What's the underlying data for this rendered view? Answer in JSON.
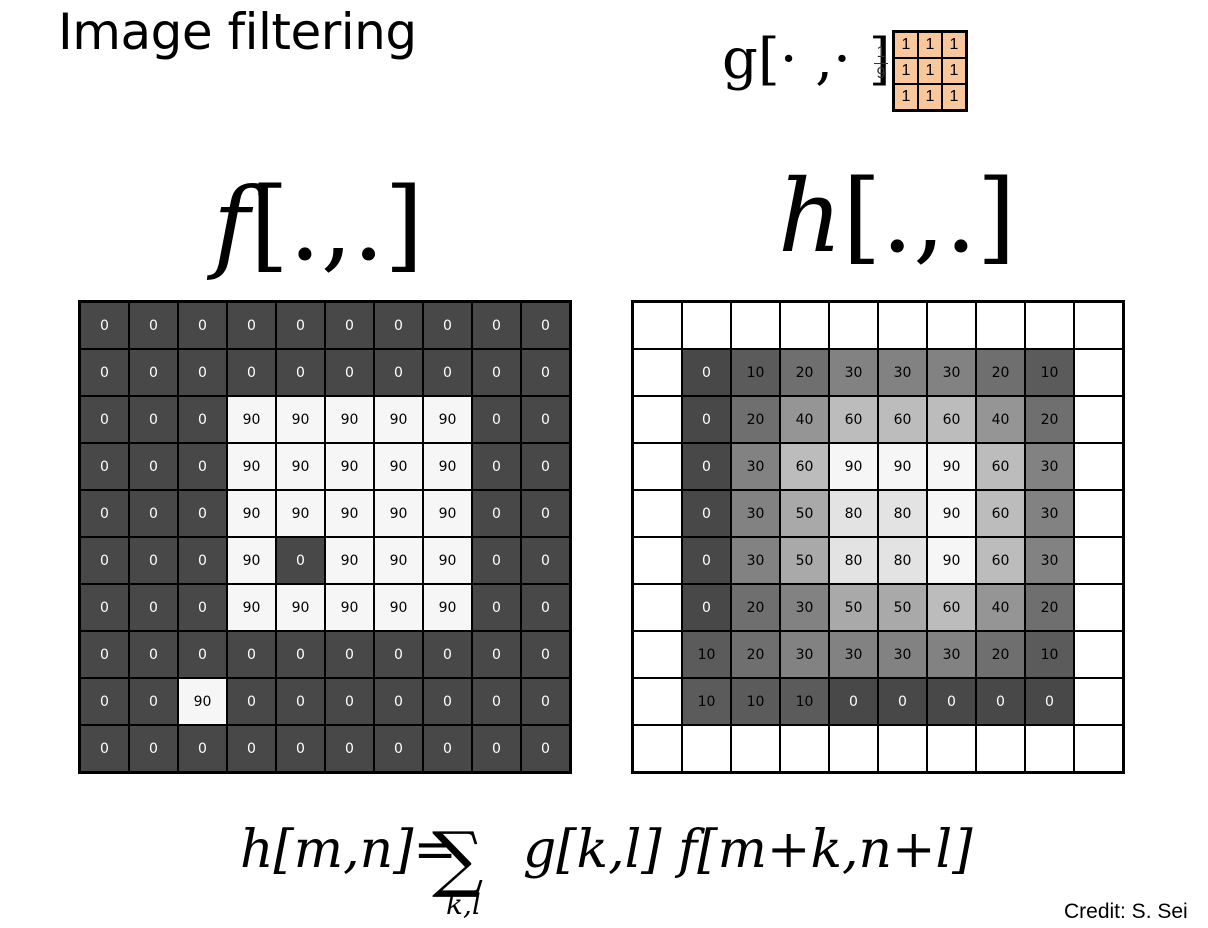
{
  "title": "Image filtering",
  "kernel": {
    "label": "g[· ,· ]",
    "scale_num": "1",
    "scale_den": "9",
    "color": "#f8c79b",
    "cells": [
      [
        "1",
        "1",
        "1"
      ],
      [
        "1",
        "1",
        "1"
      ],
      [
        "1",
        "1",
        "1"
      ]
    ]
  },
  "f_label": {
    "name": "f",
    "args": "[.,.]"
  },
  "h_label": {
    "name": "h",
    "args": "[.,.]"
  },
  "f_grid": [
    [
      "0",
      "0",
      "0",
      "0",
      "0",
      "0",
      "0",
      "0",
      "0",
      "0"
    ],
    [
      "0",
      "0",
      "0",
      "0",
      "0",
      "0",
      "0",
      "0",
      "0",
      "0"
    ],
    [
      "0",
      "0",
      "0",
      "90",
      "90",
      "90",
      "90",
      "90",
      "0",
      "0"
    ],
    [
      "0",
      "0",
      "0",
      "90",
      "90",
      "90",
      "90",
      "90",
      "0",
      "0"
    ],
    [
      "0",
      "0",
      "0",
      "90",
      "90",
      "90",
      "90",
      "90",
      "0",
      "0"
    ],
    [
      "0",
      "0",
      "0",
      "90",
      "0",
      "90",
      "90",
      "90",
      "0",
      "0"
    ],
    [
      "0",
      "0",
      "0",
      "90",
      "90",
      "90",
      "90",
      "90",
      "0",
      "0"
    ],
    [
      "0",
      "0",
      "0",
      "0",
      "0",
      "0",
      "0",
      "0",
      "0",
      "0"
    ],
    [
      "0",
      "0",
      "90",
      "0",
      "0",
      "0",
      "0",
      "0",
      "0",
      "0"
    ],
    [
      "0",
      "0",
      "0",
      "0",
      "0",
      "0",
      "0",
      "0",
      "0",
      "0"
    ]
  ],
  "h_grid": [
    [
      "",
      "",
      "",
      "",
      "",
      "",
      "",
      "",
      "",
      ""
    ],
    [
      "",
      "0",
      "10",
      "20",
      "30",
      "30",
      "30",
      "20",
      "10",
      ""
    ],
    [
      "",
      "0",
      "20",
      "40",
      "60",
      "60",
      "60",
      "40",
      "20",
      ""
    ],
    [
      "",
      "0",
      "30",
      "60",
      "90",
      "90",
      "90",
      "60",
      "30",
      ""
    ],
    [
      "",
      "0",
      "30",
      "50",
      "80",
      "80",
      "90",
      "60",
      "30",
      ""
    ],
    [
      "",
      "0",
      "30",
      "50",
      "80",
      "80",
      "90",
      "60",
      "30",
      ""
    ],
    [
      "",
      "0",
      "20",
      "30",
      "50",
      "50",
      "60",
      "40",
      "20",
      ""
    ],
    [
      "",
      "10",
      "20",
      "30",
      "30",
      "30",
      "30",
      "20",
      "10",
      ""
    ],
    [
      "",
      "10",
      "10",
      "10",
      "0",
      "0",
      "0",
      "0",
      "0",
      ""
    ],
    [
      "",
      "",
      "",
      "",
      "",
      "",
      "",
      "",
      "",
      ""
    ]
  ],
  "formula": {
    "lhs": "h[m,n]",
    "equals": "=",
    "sum_symbol": "∑",
    "sum_sub": "k,l",
    "rhs": "g[k,l] f[m+k,n+l]"
  },
  "credit": "Credit: S. Sei"
}
